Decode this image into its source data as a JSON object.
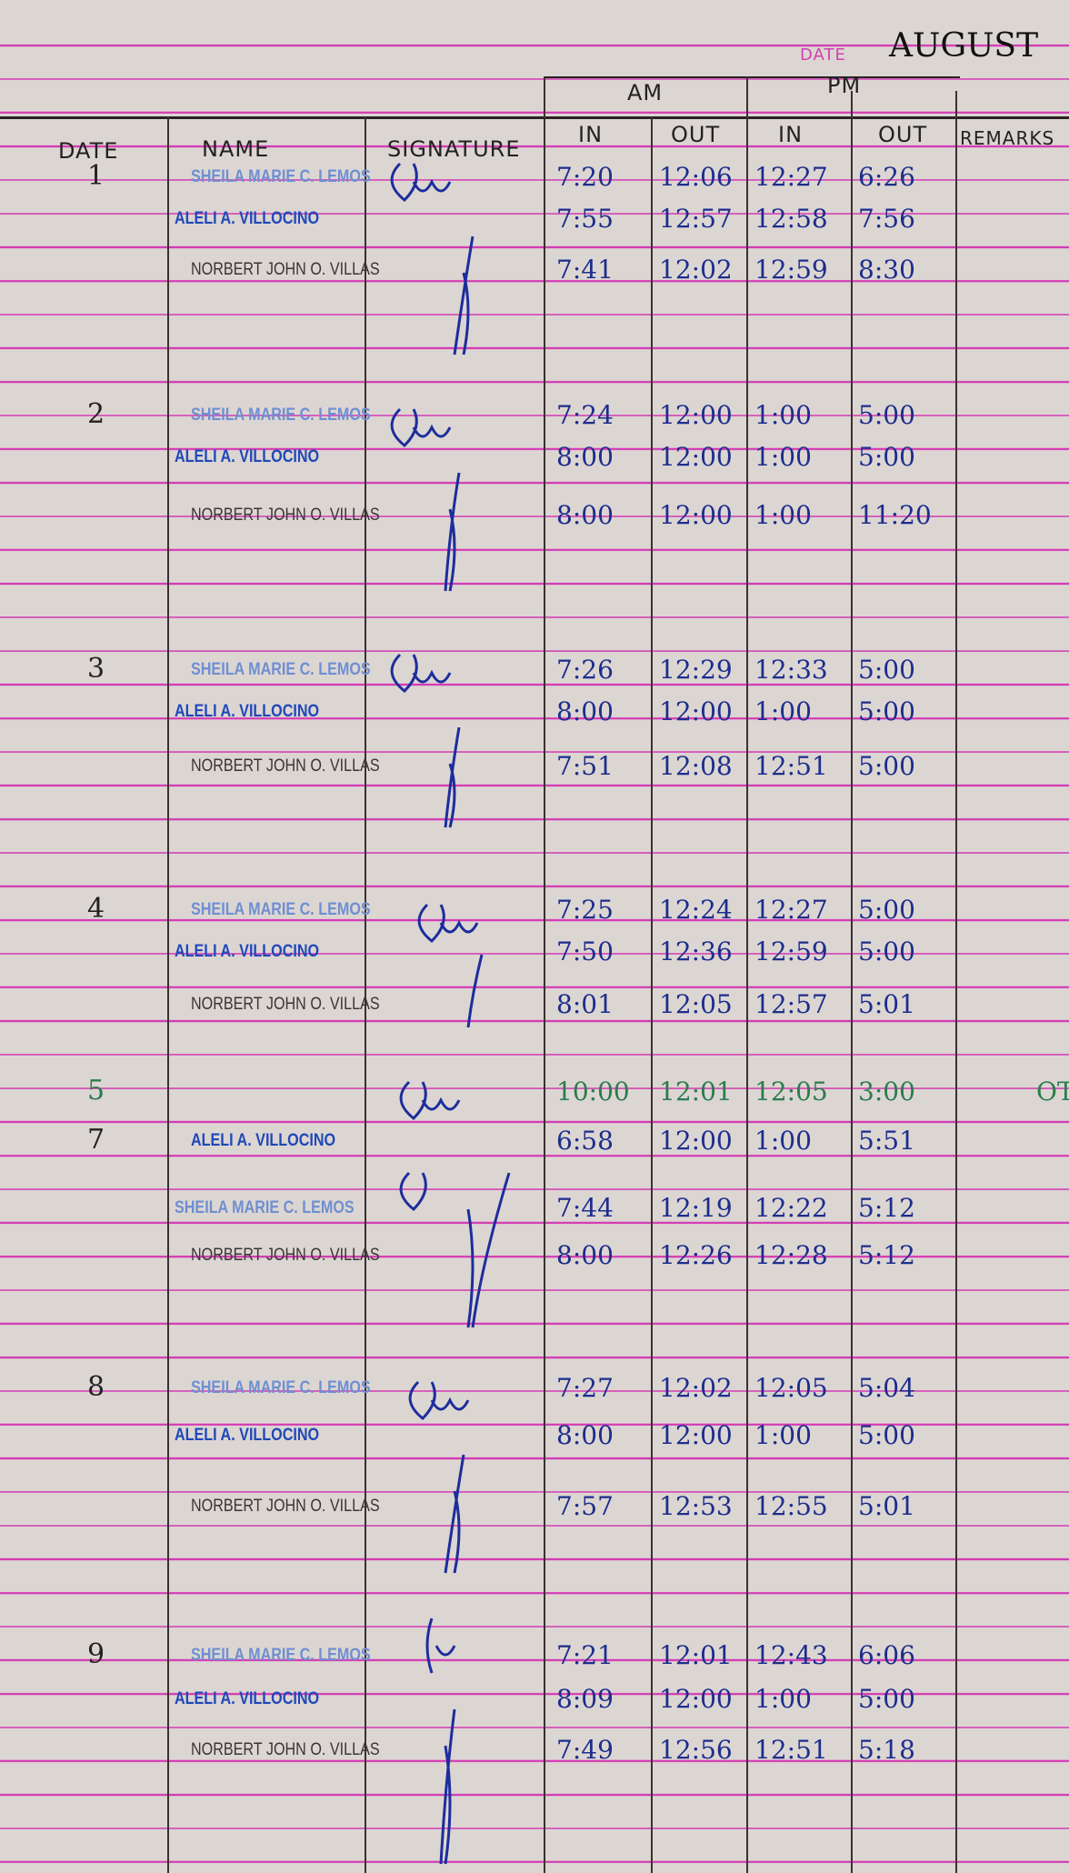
{
  "header": {
    "date_label": "DATE",
    "month": "AUGUST"
  },
  "columns": {
    "date": "DATE",
    "name": "NAME",
    "signature": "SIGNATURE",
    "am": "AM",
    "pm": "PM",
    "am_in": "IN",
    "am_out": "OUT",
    "pm_in": "IN",
    "pm_out": "OUT",
    "remarks": "REMARKS"
  },
  "entries": [
    {
      "date": "1",
      "rows": [
        {
          "name": "SHEILA MARIE C. LEMOS",
          "am_in": "7:20",
          "am_out": "12:06",
          "pm_in": "12:27",
          "pm_out": "6:26"
        },
        {
          "name": "ALELI A. VILLOCINO",
          "am_in": "7:55",
          "am_out": "12:57",
          "pm_in": "12:58",
          "pm_out": "7:56"
        },
        {
          "name": "NORBERT JOHN O. VILLAS",
          "am_in": "7:41",
          "am_out": "12:02",
          "pm_in": "12:59",
          "pm_out": "8:30"
        }
      ]
    },
    {
      "date": "2",
      "rows": [
        {
          "name": "SHEILA MARIE C. LEMOS",
          "am_in": "7:24",
          "am_out": "12:00",
          "pm_in": "1:00",
          "pm_out": "5:00"
        },
        {
          "name": "ALELI A. VILLOCINO",
          "am_in": "8:00",
          "am_out": "12:00",
          "pm_in": "1:00",
          "pm_out": "5:00"
        },
        {
          "name": "NORBERT JOHN O. VILLAS",
          "am_in": "8:00",
          "am_out": "12:00",
          "pm_in": "1:00",
          "pm_out": "11:20"
        }
      ]
    },
    {
      "date": "3",
      "rows": [
        {
          "name": "SHEILA MARIE C. LEMOS",
          "am_in": "7:26",
          "am_out": "12:29",
          "pm_in": "12:33",
          "pm_out": "5:00"
        },
        {
          "name": "ALELI A. VILLOCINO",
          "am_in": "8:00",
          "am_out": "12:00",
          "pm_in": "1:00",
          "pm_out": "5:00"
        },
        {
          "name": "NORBERT JOHN O. VILLAS",
          "am_in": "7:51",
          "am_out": "12:08",
          "pm_in": "12:51",
          "pm_out": "5:00"
        }
      ]
    },
    {
      "date": "4",
      "rows": [
        {
          "name": "SHEILA MARIE C. LEMOS",
          "am_in": "7:25",
          "am_out": "12:24",
          "pm_in": "12:27",
          "pm_out": "5:00"
        },
        {
          "name": "ALELI A. VILLOCINO",
          "am_in": "7:50",
          "am_out": "12:36",
          "pm_in": "12:59",
          "pm_out": "5:00"
        },
        {
          "name": "NORBERT JOHN O. VILLAS",
          "am_in": "8:01",
          "am_out": "12:05",
          "pm_in": "12:57",
          "pm_out": "5:01"
        }
      ]
    },
    {
      "date": "5",
      "rows": [
        {
          "am_in": "10:00",
          "am_out": "12:01",
          "pm_in": "12:05",
          "pm_out": "3:00",
          "remarks": "OT"
        }
      ]
    },
    {
      "date": "7",
      "rows": [
        {
          "name": "ALELI A. VILLOCINO",
          "am_in": "6:58",
          "am_out": "12:00",
          "pm_in": "1:00",
          "pm_out": "5:51"
        },
        {
          "name": "SHEILA MARIE C. LEMOS",
          "am_in": "7:44",
          "am_out": "12:19",
          "pm_in": "12:22",
          "pm_out": "5:12"
        },
        {
          "name": "NORBERT JOHN O. VILLAS",
          "am_in": "8:00",
          "am_out": "12:26",
          "pm_in": "12:28",
          "pm_out": "5:12"
        }
      ]
    },
    {
      "date": "8",
      "rows": [
        {
          "name": "SHEILA MARIE C. LEMOS",
          "am_in": "7:27",
          "am_out": "12:02",
          "pm_in": "12:05",
          "pm_out": "5:04"
        },
        {
          "name": "ALELI A. VILLOCINO",
          "am_in": "8:00",
          "am_out": "12:00",
          "pm_in": "1:00",
          "pm_out": "5:00"
        },
        {
          "name": "NORBERT JOHN O. VILLAS",
          "am_in": "7:57",
          "am_out": "12:53",
          "pm_in": "12:55",
          "pm_out": "5:01"
        }
      ]
    },
    {
      "date": "9",
      "rows": [
        {
          "name": "SHEILA MARIE C. LEMOS",
          "am_in": "7:21",
          "am_out": "12:01",
          "pm_in": "12:43",
          "pm_out": "6:06"
        },
        {
          "name": "ALELI A. VILLOCINO",
          "am_in": "8:09",
          "am_out": "12:00",
          "pm_in": "1:00",
          "pm_out": "5:00"
        },
        {
          "name": "NORBERT JOHN O. VILLAS",
          "am_in": "7:49",
          "am_out": "12:56",
          "pm_in": "12:51",
          "pm_out": "5:18"
        }
      ]
    }
  ]
}
